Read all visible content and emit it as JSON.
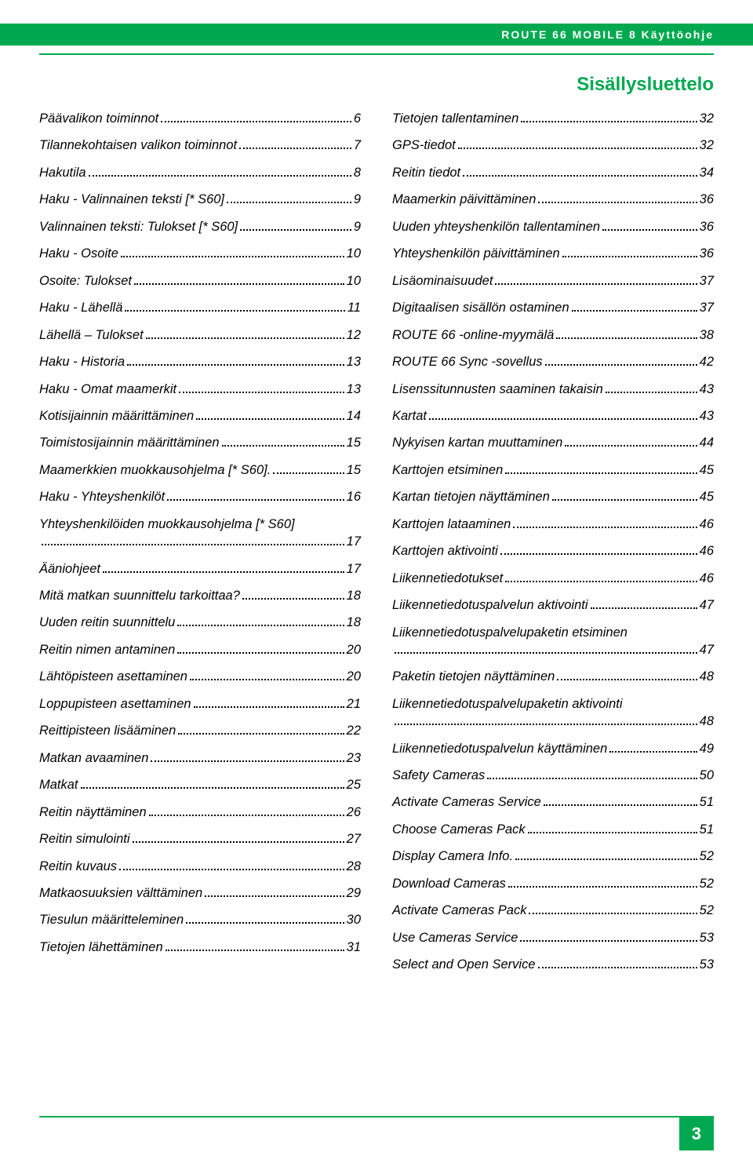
{
  "header": {
    "text": "ROUTE 66 MOBILE 8 Käyttöohje",
    "bg_color": "#00a94f",
    "text_color": "#ffffff"
  },
  "title": {
    "text": "Sisällysluettelo",
    "color": "#00a94f"
  },
  "toc_left": [
    {
      "label": "Päävalikon toiminnot",
      "page": "6"
    },
    {
      "label": "Tilannekohtaisen valikon toiminnot",
      "page": "7"
    },
    {
      "label": "Hakutila",
      "page": "8"
    },
    {
      "label": "Haku - Valinnainen teksti [* S60]",
      "page": "9"
    },
    {
      "label": "Valinnainen teksti: Tulokset [* S60]",
      "page": "9"
    },
    {
      "label": "Haku - Osoite",
      "page": "10"
    },
    {
      "label": "Osoite: Tulokset",
      "page": "10"
    },
    {
      "label": "Haku - Lähellä",
      "page": "11"
    },
    {
      "label": "Lähellä – Tulokset",
      "page": "12"
    },
    {
      "label": "Haku - Historia",
      "page": "13"
    },
    {
      "label": "Haku - Omat maamerkit",
      "page": "13"
    },
    {
      "label": "Kotisijainnin määrittäminen",
      "page": "14"
    },
    {
      "label": "Toimistosijainnin määrittäminen",
      "page": "15"
    },
    {
      "label": "Maamerkkien muokkausohjelma [* S60].",
      "page": "15"
    },
    {
      "label": "Haku - Yhteyshenkilöt",
      "page": "16"
    },
    {
      "label": "Yhteyshenkilöiden muokkausohjelma [* S60]",
      "page": "17"
    },
    {
      "label": "Ääniohjeet",
      "page": "17"
    },
    {
      "label": "Mitä matkan suunnittelu tarkoittaa?",
      "page": "18"
    },
    {
      "label": "Uuden reitin suunnittelu",
      "page": "18"
    },
    {
      "label": "Reitin nimen antaminen",
      "page": "20"
    },
    {
      "label": "Lähtöpisteen asettaminen",
      "page": "20"
    },
    {
      "label": "Loppupisteen asettaminen",
      "page": "21"
    },
    {
      "label": "Reittipisteen lisääminen",
      "page": "22"
    },
    {
      "label": "Matkan avaaminen",
      "page": "23"
    },
    {
      "label": "Matkat",
      "page": "25"
    },
    {
      "label": "Reitin näyttäminen",
      "page": "26"
    },
    {
      "label": "Reitin simulointi",
      "page": "27"
    },
    {
      "label": "Reitin kuvaus",
      "page": "28"
    },
    {
      "label": "Matkaosuuksien välttäminen",
      "page": "29"
    },
    {
      "label": "Tiesulun määritteleminen",
      "page": "30"
    },
    {
      "label": "Tietojen lähettäminen",
      "page": "31"
    }
  ],
  "toc_right": [
    {
      "label": "Tietojen tallentaminen",
      "page": "32"
    },
    {
      "label": "GPS-tiedot",
      "page": "32"
    },
    {
      "label": "Reitin tiedot",
      "page": "34"
    },
    {
      "label": "Maamerkin päivittäminen",
      "page": "36"
    },
    {
      "label": "Uuden yhteyshenkilön tallentaminen",
      "page": "36"
    },
    {
      "label": "Yhteyshenkilön päivittäminen",
      "page": "36"
    },
    {
      "label": "Lisäominaisuudet",
      "page": "37"
    },
    {
      "label": "Digitaalisen sisällön ostaminen",
      "page": "37"
    },
    {
      "label": "ROUTE 66 -online-myymälä",
      "page": "38"
    },
    {
      "label": "ROUTE 66 Sync -sovellus",
      "page": "42"
    },
    {
      "label": "Lisenssitunnusten saaminen takaisin",
      "page": "43"
    },
    {
      "label": "Kartat",
      "page": "43"
    },
    {
      "label": "Nykyisen kartan muuttaminen",
      "page": "44"
    },
    {
      "label": "Karttojen etsiminen",
      "page": "45"
    },
    {
      "label": "Kartan tietojen näyttäminen",
      "page": "45"
    },
    {
      "label": "Karttojen lataaminen",
      "page": "46"
    },
    {
      "label": "Karttojen aktivointi",
      "page": "46"
    },
    {
      "label": "Liikennetiedotukset",
      "page": "46"
    },
    {
      "label": "Liikennetiedotuspalvelun aktivointi",
      "page": "47"
    },
    {
      "label": "Liikennetiedotuspalvelupaketin etsiminen",
      "page": "47"
    },
    {
      "label": "Paketin tietojen näyttäminen",
      "page": "48"
    },
    {
      "label": "Liikennetiedotuspalvelupaketin aktivointi",
      "page": "48"
    },
    {
      "label": "Liikennetiedotuspalvelun käyttäminen",
      "page": "49"
    },
    {
      "label": "Safety Cameras",
      "page": "50"
    },
    {
      "label": "Activate Cameras Service",
      "page": "51"
    },
    {
      "label": "Choose Cameras Pack",
      "page": "51"
    },
    {
      "label": "Display Camera Info.",
      "page": "52"
    },
    {
      "label": "Download Cameras",
      "page": "52"
    },
    {
      "label": "Activate Cameras Pack",
      "page": "52"
    },
    {
      "label": "Use Cameras Service",
      "page": "53"
    },
    {
      "label": "Select and Open Service",
      "page": "53"
    }
  ],
  "footer": {
    "page_number": "3",
    "bg_color": "#00a94f",
    "text_color": "#ffffff"
  },
  "styles": {
    "accent_color": "#00a94f",
    "text_color": "#000000",
    "background_color": "#ffffff",
    "toc_font_style": "italic",
    "toc_font_size": 16.5
  }
}
